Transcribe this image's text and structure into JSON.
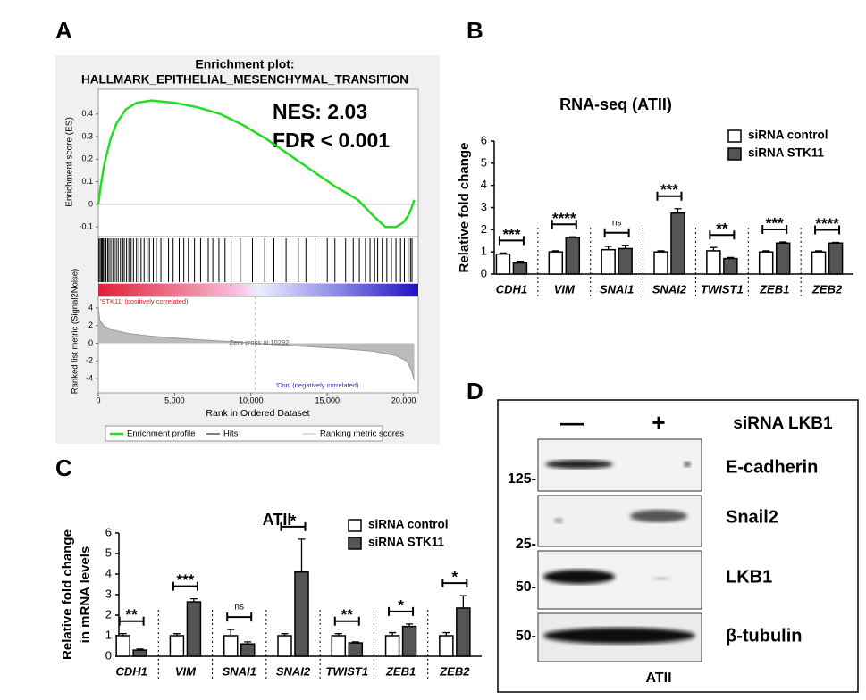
{
  "panel_labels": [
    "A",
    "B",
    "C",
    "D"
  ],
  "chart_data": [
    {
      "type": "line",
      "title": "Enrichment plot:",
      "subtitle": "HALLMARK_EPITHELIAL_MESENCHYMAL_TRANSITION",
      "annotations": [
        "NES: 2.03",
        "FDR < 0.001"
      ],
      "y_label": "Enrichment score (ES)",
      "ylim": [
        -0.135,
        0.51
      ],
      "yticks": [
        0.4,
        0.3,
        0.2,
        0.1,
        0.0,
        -0.1
      ],
      "xlim": [
        0,
        20900
      ],
      "x": [
        0,
        150,
        400,
        800,
        1200,
        1800,
        2500,
        3500,
        5000,
        6500,
        8000,
        9500,
        11000,
        12500,
        14000,
        15500,
        17000,
        18000,
        18800,
        19500,
        20000,
        20300,
        20500,
        20600,
        20700
      ],
      "values": [
        0,
        0.08,
        0.18,
        0.29,
        0.36,
        0.42,
        0.45,
        0.46,
        0.45,
        0.43,
        0.4,
        0.35,
        0.29,
        0.22,
        0.15,
        0.08,
        0.02,
        -0.05,
        -0.1,
        -0.1,
        -0.08,
        -0.05,
        -0.02,
        0.0,
        0.02
      ],
      "color": "#22dd22",
      "hits": [
        40,
        120,
        200,
        260,
        330,
        420,
        500,
        610,
        700,
        820,
        950,
        1050,
        1180,
        1300,
        1450,
        1600,
        1700,
        1850,
        2000,
        2150,
        2300,
        2500,
        2650,
        2800,
        3000,
        3200,
        3350,
        3600,
        3800,
        4100,
        4300,
        4600,
        4900,
        5300,
        5600,
        5900,
        6300,
        6700,
        7200,
        7500,
        7900,
        8300,
        8700,
        9300,
        10100,
        10900,
        11500,
        12300,
        13100,
        13600,
        14200,
        15000,
        15500,
        16200,
        16700,
        17100,
        17500,
        17800,
        18100,
        18300,
        18600,
        18900,
        19200,
        19500,
        19800,
        20050,
        20300,
        20450,
        20550
      ],
      "hits_color": "#000000",
      "legend": [
        "Enrichment profile",
        "Hits",
        "Ranking metric scores"
      ]
    },
    {
      "type": "area",
      "y_label": "Ranked list metric (Signal2Noise)",
      "x_label": "Rank in Ordered Dataset",
      "ylim": [
        -5.6,
        5.3
      ],
      "yticks": [
        4,
        2,
        0,
        -2,
        -4
      ],
      "xlim": [
        0,
        20900
      ],
      "xticks": [
        0,
        {
          "value": 5000,
          "label": "5,000"
        },
        {
          "value": 10000,
          "label": "10,000"
        },
        {
          "value": 15000,
          "label": "15,000"
        },
        {
          "value": 20000,
          "label": "20,000"
        }
      ],
      "x": [
        0,
        100,
        400,
        1000,
        2000,
        3500,
        5000,
        7000,
        9000,
        10292,
        12000,
        14000,
        16000,
        18000,
        19500,
        20200,
        20500,
        20700
      ],
      "values": [
        4,
        2.6,
        1.9,
        1.5,
        1.1,
        0.8,
        0.6,
        0.35,
        0.15,
        0,
        -0.2,
        -0.4,
        -0.6,
        -0.9,
        -1.4,
        -2,
        -3,
        -4.2
      ],
      "color": "#bbbbbb",
      "zero_cross": 10292,
      "annotations": [
        "'STK11' (positively correlated)",
        "Zero cross at 10292",
        "'Con' (negatively correlated)"
      ]
    },
    {
      "type": "bar",
      "title": "RNA-seq (ATII)",
      "y_label": [
        "Relative fold change"
      ],
      "ylim": [
        0,
        6
      ],
      "yticks": [
        0,
        1,
        2,
        3,
        4,
        5,
        6
      ],
      "categories": [
        "CDH1",
        "VIM",
        "SNAI1",
        "SNAI2",
        "TWIST1",
        "ZEB1",
        "ZEB2"
      ],
      "series": [
        {
          "name": "siRNA control",
          "color": "#ffffff",
          "values": [
            0.9,
            1,
            1.1,
            1,
            1.05,
            1,
            1
          ],
          "errors": [
            0.05,
            0.05,
            0.15,
            0.05,
            0.15,
            0.05,
            0.05
          ]
        },
        {
          "name": "siRNA STK11",
          "color": "#555555",
          "values": [
            0.5,
            1.65,
            1.15,
            2.75,
            0.7,
            1.4,
            1.4
          ],
          "errors": [
            0.08,
            0.03,
            0.15,
            0.2,
            0.05,
            0.05,
            0.03
          ]
        }
      ],
      "significance": [
        "***",
        "****",
        "ns",
        "***",
        "**",
        "***",
        "****"
      ]
    },
    {
      "type": "bar",
      "title": "ATII",
      "y_label": [
        "Relative fold change",
        "in mRNA levels"
      ],
      "ylim": [
        0,
        6
      ],
      "yticks": [
        0,
        1,
        2,
        3,
        4,
        5,
        6
      ],
      "categories": [
        "CDH1",
        "VIM",
        "SNAI1",
        "SNAI2",
        "TWIST1",
        "ZEB1",
        "ZEB2"
      ],
      "series": [
        {
          "name": "siRNA control",
          "color": "#ffffff",
          "values": [
            1,
            1,
            1,
            1,
            1,
            1,
            1
          ],
          "errors": [
            0.1,
            0.1,
            0.3,
            0.1,
            0.1,
            0.15,
            0.15
          ]
        },
        {
          "name": "siRNA STK11",
          "color": "#555555",
          "values": [
            0.3,
            2.65,
            0.6,
            4.1,
            0.65,
            1.45,
            2.35
          ],
          "errors": [
            0.05,
            0.15,
            0.1,
            1.6,
            0.05,
            0.12,
            0.6
          ]
        }
      ],
      "significance": [
        "**",
        "***",
        "ns",
        "*",
        "**",
        "*",
        "*"
      ]
    }
  ],
  "blot": {
    "header": [
      "—",
      "+",
      "siRNA LKB1"
    ],
    "rows": [
      {
        "marker": "125-",
        "label": "E-cadherin"
      },
      {
        "marker": "25-",
        "label": "Snail2"
      },
      {
        "marker": "50-",
        "label": "LKB1"
      },
      {
        "marker": "50-",
        "label": "β-tubulin"
      }
    ],
    "footer": "ATII"
  }
}
